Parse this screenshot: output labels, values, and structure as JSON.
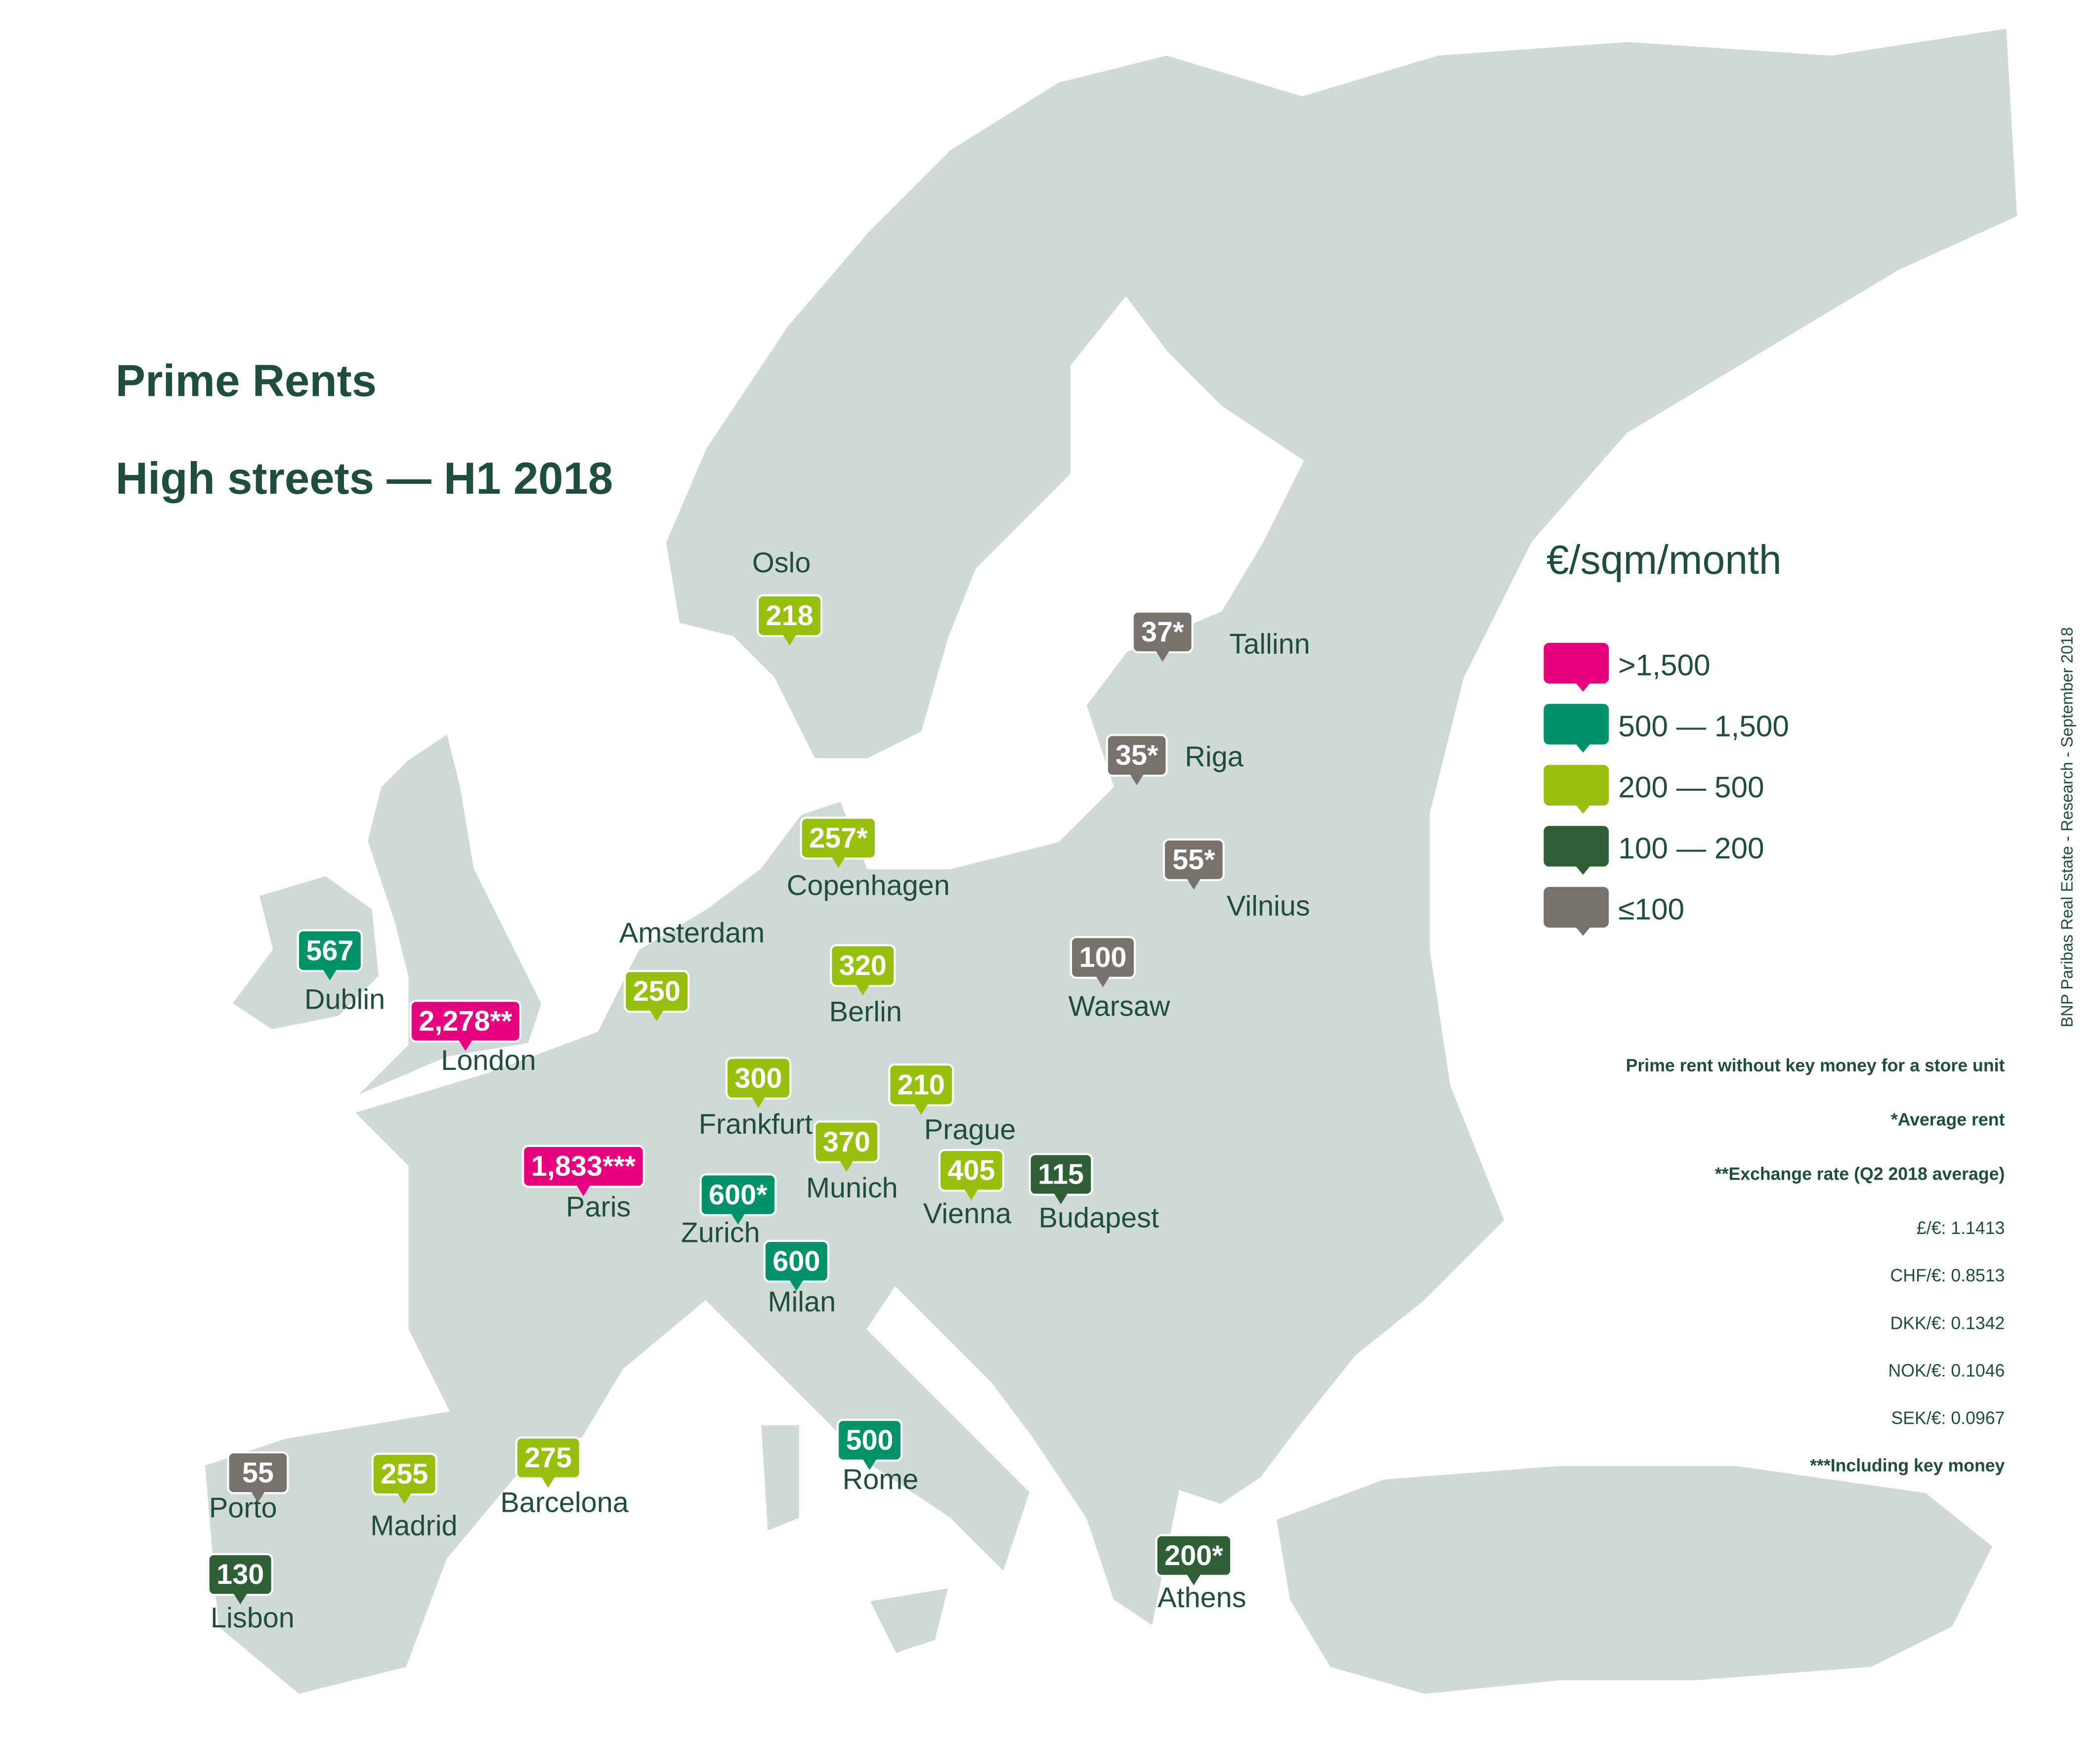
{
  "title": "Prime Rents",
  "subtitle": "High streets — H1 2018",
  "unit": "€/sqm/month",
  "legend": [
    {
      "label": ">1,500",
      "color": "#e6007e"
    },
    {
      "label": "500 — 1,500",
      "color": "#00936a"
    },
    {
      "label": "200 — 500",
      "color": "#97bf0d"
    },
    {
      "label": "100 — 200",
      "color": "#2f5f37"
    },
    {
      "label": "≤100",
      "color": "#77726b"
    }
  ],
  "cities": [
    {
      "name": "Oslo",
      "value": "218",
      "color": "#97bf0d"
    },
    {
      "name": "Tallinn",
      "value": "37*",
      "color": "#77726b"
    },
    {
      "name": "Riga",
      "value": "35*",
      "color": "#77726b"
    },
    {
      "name": "Copenhagen",
      "value": "257*",
      "color": "#97bf0d"
    },
    {
      "name": "Vilnius",
      "value": "55*",
      "color": "#77726b"
    },
    {
      "name": "Amsterdam",
      "value": "250",
      "color": "#97bf0d"
    },
    {
      "name": "Dublin",
      "value": "567",
      "color": "#00936a"
    },
    {
      "name": "Berlin",
      "value": "320",
      "color": "#97bf0d"
    },
    {
      "name": "Warsaw",
      "value": "100",
      "color": "#77726b"
    },
    {
      "name": "London",
      "value": "2,278**",
      "color": "#e6007e"
    },
    {
      "name": "Frankfurt",
      "value": "300",
      "color": "#97bf0d"
    },
    {
      "name": "Prague",
      "value": "210",
      "color": "#97bf0d"
    },
    {
      "name": "Munich",
      "value": "370",
      "color": "#97bf0d"
    },
    {
      "name": "Paris",
      "value": "1,833***",
      "color": "#e6007e"
    },
    {
      "name": "Zurich",
      "value": "600*",
      "color": "#00936a"
    },
    {
      "name": "Vienna",
      "value": "405",
      "color": "#97bf0d"
    },
    {
      "name": "Budapest",
      "value": "115",
      "color": "#2f5f37"
    },
    {
      "name": "Milan",
      "value": "600",
      "color": "#00936a"
    },
    {
      "name": "Rome",
      "value": "500",
      "color": "#00936a"
    },
    {
      "name": "Porto",
      "value": "55",
      "color": "#77726b"
    },
    {
      "name": "Madrid",
      "value": "255",
      "color": "#97bf0d"
    },
    {
      "name": "Barcelona",
      "value": "275",
      "color": "#97bf0d"
    },
    {
      "name": "Lisbon",
      "value": "130",
      "color": "#2f5f37"
    },
    {
      "name": "Athens",
      "value": "200*",
      "color": "#2f5f37"
    }
  ],
  "notes": [
    {
      "text": "Prime rent without key money for a store unit",
      "bold": true
    },
    {
      "text": "*Average rent",
      "bold": true
    },
    {
      "text": "**Exchange rate (Q2 2018 average)",
      "bold": true
    },
    {
      "text": "£/€: 1.1413",
      "bold": false
    },
    {
      "text": "CHF/€: 0.8513",
      "bold": false
    },
    {
      "text": "DKK/€: 0.1342",
      "bold": false
    },
    {
      "text": "NOK/€: 0.1046",
      "bold": false
    },
    {
      "text": "SEK/€: 0.0967",
      "bold": false
    },
    {
      "text": "***Including key money",
      "bold": true
    }
  ],
  "source": "BNP Paribas Real Estate - Research - September 2018"
}
